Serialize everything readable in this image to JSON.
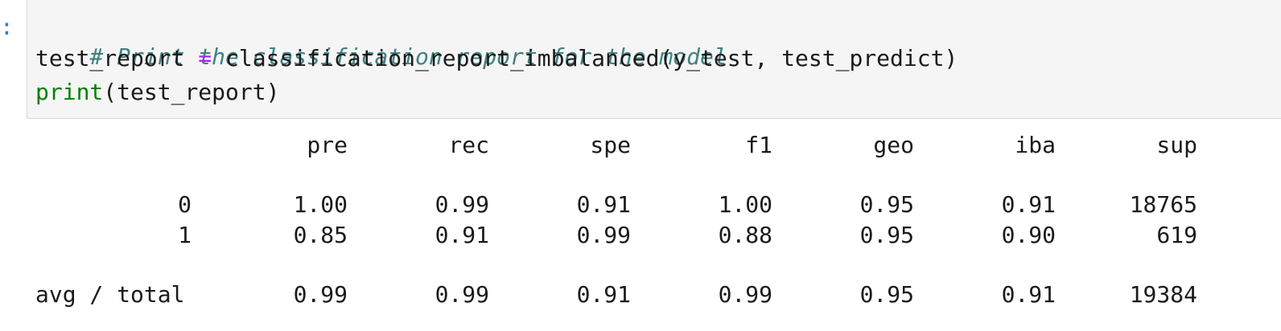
{
  "prompt": {
    "marker": ":"
  },
  "code": {
    "line1": "# Print the classification report for the model",
    "line2_var": "test_report",
    "line2_op": " = ",
    "line2_call": "classification_report_imbalanced(y_test, test_predict)",
    "line3_builtin": "print",
    "line3_args": "(test_report)"
  },
  "report": {
    "columns": [
      "pre",
      "rec",
      "spe",
      "f1",
      "geo",
      "iba",
      "sup"
    ],
    "rows": [
      {
        "label": "0",
        "values": [
          "1.00",
          "0.99",
          "0.91",
          "1.00",
          "0.95",
          "0.91",
          "18765"
        ]
      },
      {
        "label": "1",
        "values": [
          "0.85",
          "0.91",
          "0.99",
          "0.88",
          "0.95",
          "0.90",
          "619"
        ]
      }
    ],
    "total": {
      "label": "avg / total",
      "values": [
        "0.99",
        "0.99",
        "0.91",
        "0.99",
        "0.95",
        "0.91",
        "19384"
      ]
    }
  },
  "colors": {
    "comment": "#408080",
    "operator": "#aa22ff",
    "builtin": "#008000",
    "prompt": "#307fc1",
    "cell_background": "#f5f5f5"
  }
}
